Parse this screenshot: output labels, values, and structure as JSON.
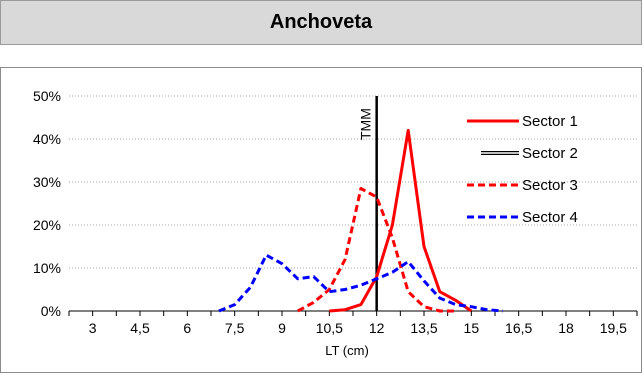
{
  "header": {
    "title": "Anchoveta"
  },
  "chart_data": {
    "type": "line",
    "xlabel": "LT (cm)",
    "ylabel": "",
    "x_tick_labels": [
      "3",
      "4,5",
      "6",
      "7,5",
      "9",
      "10,5",
      "12",
      "13,5",
      "15",
      "16,5",
      "18",
      "19,5"
    ],
    "x_ticks": [
      3,
      4.5,
      6,
      7.5,
      9,
      10.5,
      12,
      13.5,
      15,
      16.5,
      18,
      19.5
    ],
    "xlim": [
      2.25,
      20.25
    ],
    "y_tick_labels": [
      "0%",
      "10%",
      "20%",
      "30%",
      "40%",
      "50%"
    ],
    "y_ticks": [
      0,
      10,
      20,
      30,
      40,
      50
    ],
    "ylim": [
      0,
      50
    ],
    "grid": "horizontal dotted",
    "legend_position": "top-right",
    "vline": {
      "x": 12,
      "label": "TMM"
    },
    "series": [
      {
        "name": "Sector 1",
        "color": "#ff0000",
        "style": "solid",
        "x": [
          10.5,
          11,
          11.5,
          12,
          12.5,
          13,
          13.5,
          14,
          14.5,
          15
        ],
        "y": [
          0,
          0.3,
          1.5,
          8,
          20,
          42,
          15,
          4.5,
          2.5,
          0
        ]
      },
      {
        "name": "Sector 2",
        "color": "#000000",
        "style": "double",
        "x": [],
        "y": []
      },
      {
        "name": "Sector 3",
        "color": "#ff0000",
        "style": "dashed",
        "x": [
          9.5,
          10,
          10.5,
          11,
          11.5,
          12,
          12.5,
          13,
          13.5,
          14,
          14.5
        ],
        "y": [
          0,
          2,
          5,
          12,
          28.5,
          26.5,
          17,
          4.5,
          1,
          0,
          0
        ]
      },
      {
        "name": "Sector 4",
        "color": "#0000ff",
        "style": "dashed",
        "x": [
          7,
          7.5,
          8,
          8.5,
          9,
          9.5,
          10,
          10.5,
          11,
          11.5,
          12,
          12.5,
          13,
          13.5,
          14,
          14.5,
          15,
          15.5,
          16
        ],
        "y": [
          0,
          1.5,
          5.5,
          13,
          11,
          7.5,
          8,
          4.5,
          5,
          6,
          7.5,
          9,
          11.5,
          7,
          3,
          1.5,
          1,
          0.3,
          0
        ]
      }
    ]
  }
}
